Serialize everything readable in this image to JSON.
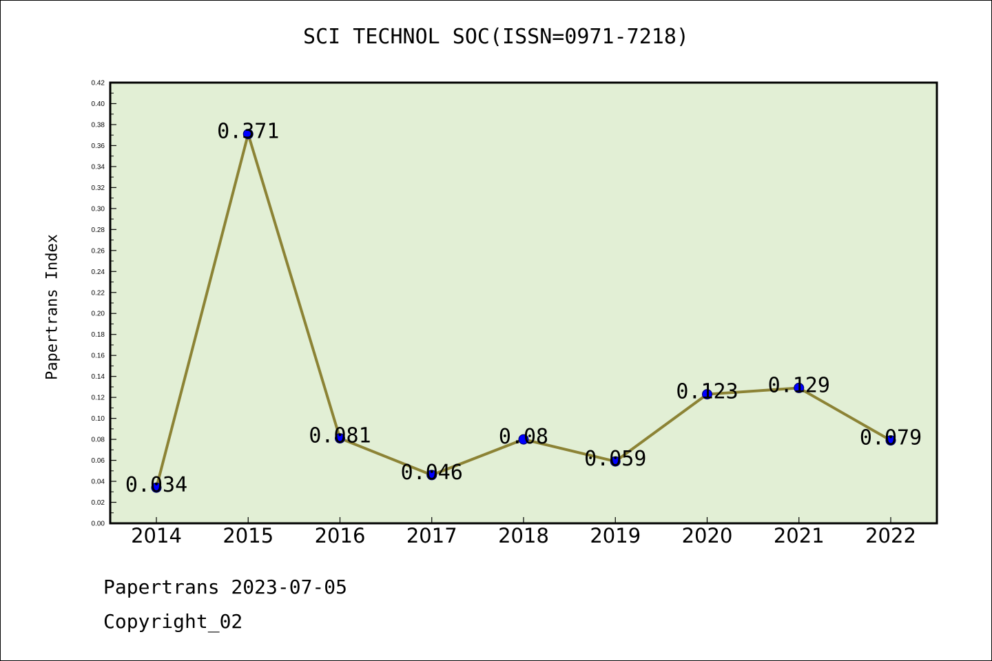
{
  "header": {
    "title": "SCI TECHNOL SOC(ISSN=0971-7218)"
  },
  "footer": {
    "date_line": "Papertrans 2023-07-05",
    "copyright_line": "Copyright_02"
  },
  "colors": {
    "plot_background": "#e2efd5",
    "line": "#8c8335",
    "marker": "#0000ff",
    "axis": "#000000"
  },
  "chart_data": {
    "type": "line",
    "title": "SCI TECHNOL SOC(ISSN=0971-7218)",
    "xlabel": "",
    "ylabel": "Papertrans Index",
    "categories": [
      "2014",
      "2015",
      "2016",
      "2017",
      "2018",
      "2019",
      "2020",
      "2021",
      "2022"
    ],
    "values": [
      0.034,
      0.371,
      0.081,
      0.046,
      0.08,
      0.059,
      0.123,
      0.129,
      0.079
    ],
    "data_labels": [
      "0.034",
      "0.371",
      "0.081",
      "0.046",
      "0.08",
      "0.059",
      "0.123",
      "0.129",
      "0.079"
    ],
    "ylim": [
      0,
      0.42
    ],
    "yticks": [
      "0.00",
      "0.02",
      "0.04",
      "0.06",
      "0.08",
      "0.10",
      "0.12",
      "0.14",
      "0.16",
      "0.18",
      "0.20",
      "0.22",
      "0.24",
      "0.26",
      "0.28",
      "0.30",
      "0.32",
      "0.34",
      "0.36",
      "0.38",
      "0.40",
      "0.42"
    ],
    "grid": false,
    "legend": "none"
  }
}
